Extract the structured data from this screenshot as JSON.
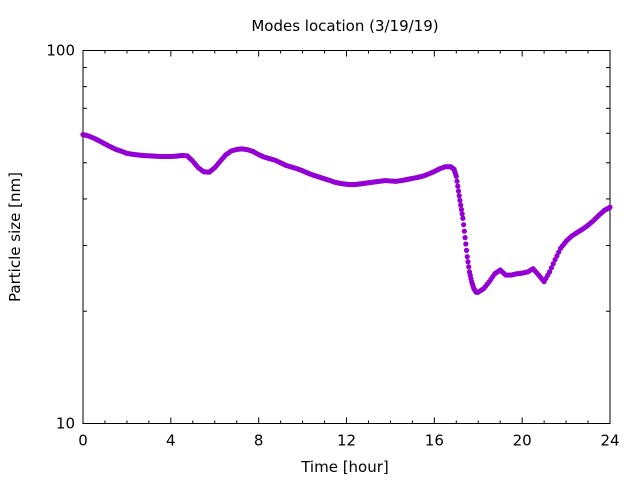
{
  "chart_data": {
    "type": "scatter",
    "title": "Modes location (3/19/19)",
    "xlabel": "Time [hour]",
    "ylabel": "Particle size [nm]",
    "xlim": [
      0,
      24
    ],
    "ylim": [
      10,
      100
    ],
    "yscale": "log",
    "grid": false,
    "legend": "none",
    "marker_color": "#9400d3",
    "xticks": [
      {
        "value": 0,
        "label": "0"
      },
      {
        "value": 4,
        "label": "4"
      },
      {
        "value": 8,
        "label": "8"
      },
      {
        "value": 12,
        "label": "12"
      },
      {
        "value": 16,
        "label": "16"
      },
      {
        "value": 20,
        "label": "20"
      },
      {
        "value": 24,
        "label": "24"
      }
    ],
    "yticks": [
      {
        "value": 10,
        "label": "10"
      },
      {
        "value": 100,
        "label": "100"
      }
    ],
    "series": [
      {
        "points": [
          [
            0.0,
            59.5
          ],
          [
            0.25,
            59.0
          ],
          [
            0.5,
            58.2
          ],
          [
            0.75,
            57.2
          ],
          [
            1.0,
            56.2
          ],
          [
            1.25,
            55.2
          ],
          [
            1.5,
            54.3
          ],
          [
            1.75,
            53.7
          ],
          [
            2.0,
            53.0
          ],
          [
            2.25,
            52.7
          ],
          [
            2.5,
            52.5
          ],
          [
            2.75,
            52.3
          ],
          [
            3.0,
            52.2
          ],
          [
            3.25,
            52.1
          ],
          [
            3.5,
            52.0
          ],
          [
            3.75,
            52.0
          ],
          [
            4.0,
            52.0
          ],
          [
            4.25,
            52.1
          ],
          [
            4.5,
            52.3
          ],
          [
            4.75,
            52.2
          ],
          [
            5.0,
            50.5
          ],
          [
            5.25,
            48.5
          ],
          [
            5.5,
            47.3
          ],
          [
            5.75,
            47.2
          ],
          [
            6.0,
            48.5
          ],
          [
            6.25,
            50.5
          ],
          [
            6.5,
            52.5
          ],
          [
            6.75,
            53.8
          ],
          [
            7.0,
            54.3
          ],
          [
            7.25,
            54.5
          ],
          [
            7.5,
            54.2
          ],
          [
            7.75,
            53.6
          ],
          [
            8.0,
            52.6
          ],
          [
            8.25,
            51.8
          ],
          [
            8.5,
            51.3
          ],
          [
            8.75,
            50.8
          ],
          [
            9.0,
            50.0
          ],
          [
            9.25,
            49.2
          ],
          [
            9.5,
            48.7
          ],
          [
            9.75,
            48.2
          ],
          [
            10.0,
            47.6
          ],
          [
            10.25,
            46.9
          ],
          [
            10.5,
            46.3
          ],
          [
            10.75,
            45.8
          ],
          [
            11.0,
            45.3
          ],
          [
            11.25,
            44.8
          ],
          [
            11.5,
            44.3
          ],
          [
            11.75,
            44.0
          ],
          [
            12.0,
            43.8
          ],
          [
            12.25,
            43.7
          ],
          [
            12.5,
            43.8
          ],
          [
            12.75,
            44.0
          ],
          [
            13.0,
            44.2
          ],
          [
            13.25,
            44.4
          ],
          [
            13.5,
            44.6
          ],
          [
            13.75,
            44.8
          ],
          [
            14.0,
            44.7
          ],
          [
            14.25,
            44.6
          ],
          [
            14.5,
            44.8
          ],
          [
            14.75,
            45.1
          ],
          [
            15.0,
            45.4
          ],
          [
            15.25,
            45.7
          ],
          [
            15.5,
            46.1
          ],
          [
            15.75,
            46.7
          ],
          [
            16.0,
            47.4
          ],
          [
            16.25,
            48.2
          ],
          [
            16.5,
            48.8
          ],
          [
            16.75,
            48.8
          ],
          [
            16.9,
            48.0
          ],
          [
            17.0,
            46.0
          ],
          [
            17.1,
            42.0
          ],
          [
            17.2,
            38.5
          ],
          [
            17.3,
            35.5
          ],
          [
            17.4,
            31.5
          ],
          [
            17.5,
            28.0
          ],
          [
            17.6,
            25.5
          ],
          [
            17.7,
            24.0
          ],
          [
            17.8,
            23.0
          ],
          [
            17.9,
            22.5
          ],
          [
            18.0,
            22.5
          ],
          [
            18.25,
            23.0
          ],
          [
            18.5,
            24.0
          ],
          [
            18.75,
            25.2
          ],
          [
            19.0,
            25.8
          ],
          [
            19.25,
            25.0
          ],
          [
            19.5,
            25.0
          ],
          [
            19.75,
            25.2
          ],
          [
            20.0,
            25.3
          ],
          [
            20.25,
            25.5
          ],
          [
            20.5,
            26.0
          ],
          [
            20.75,
            25.0
          ],
          [
            21.0,
            24.0
          ],
          [
            21.25,
            25.5
          ],
          [
            21.5,
            27.5
          ],
          [
            21.75,
            29.5
          ],
          [
            22.0,
            30.8
          ],
          [
            22.25,
            31.8
          ],
          [
            22.5,
            32.5
          ],
          [
            22.75,
            33.2
          ],
          [
            23.0,
            34.0
          ],
          [
            23.25,
            35.0
          ],
          [
            23.5,
            36.2
          ],
          [
            23.75,
            37.3
          ],
          [
            24.0,
            38.0
          ]
        ]
      }
    ]
  }
}
